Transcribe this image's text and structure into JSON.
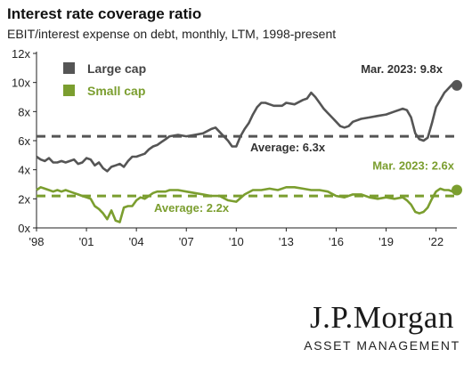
{
  "title": "Interest rate coverage ratio",
  "subtitle": "EBIT/interest expense on debt, monthly, LTM, 1998-present",
  "brand": {
    "name": "J.P.Morgan",
    "tagline": "ASSET MANAGEMENT"
  },
  "colors": {
    "large_cap": "#555555",
    "small_cap": "#7b9e2f",
    "axis": "#222222",
    "text": "#222222"
  },
  "chart_data": {
    "type": "line",
    "title": "Interest rate coverage ratio",
    "xlabel": "",
    "ylabel": "",
    "xlim": [
      1998,
      2023.25
    ],
    "ylim": [
      0,
      12
    ],
    "grid": false,
    "legend": "top-left",
    "x_ticks": [
      1998,
      2001,
      2004,
      2007,
      2010,
      2013,
      2016,
      2019,
      2022
    ],
    "x_tick_labels": [
      "'98",
      "'01",
      "'04",
      "'07",
      "'10",
      "'13",
      "'16",
      "'19",
      "'22"
    ],
    "y_ticks": [
      0,
      2,
      4,
      6,
      8,
      10,
      12
    ],
    "y_tick_labels": [
      "0x",
      "2x",
      "4x",
      "6x",
      "8x",
      "10x",
      "12x"
    ],
    "series": [
      {
        "name": "Large cap",
        "color": "#555555",
        "average": 6.3,
        "average_label": "Average: 6.3x",
        "end_label": "Mar. 2023: 9.8x",
        "x": [
          1998.0,
          1998.25,
          1998.5,
          1998.75,
          1999.0,
          1999.25,
          1999.5,
          1999.75,
          2000.0,
          2000.25,
          2000.5,
          2000.75,
          2001.0,
          2001.25,
          2001.5,
          2001.75,
          2002.0,
          2002.25,
          2002.5,
          2002.75,
          2003.0,
          2003.25,
          2003.5,
          2003.75,
          2004.0,
          2004.25,
          2004.5,
          2004.75,
          2005.0,
          2005.25,
          2005.5,
          2005.75,
          2006.0,
          2006.5,
          2007.0,
          2007.5,
          2008.0,
          2008.5,
          2008.75,
          2009.0,
          2009.25,
          2009.5,
          2009.75,
          2010.0,
          2010.25,
          2010.5,
          2010.75,
          2011.0,
          2011.25,
          2011.5,
          2011.75,
          2012.0,
          2012.25,
          2012.5,
          2012.75,
          2013.0,
          2013.5,
          2014.0,
          2014.25,
          2014.5,
          2014.75,
          2015.0,
          2015.25,
          2015.5,
          2015.75,
          2016.0,
          2016.25,
          2016.5,
          2016.75,
          2017.0,
          2017.5,
          2018.0,
          2018.5,
          2019.0,
          2019.5,
          2020.0,
          2020.25,
          2020.5,
          2020.75,
          2021.0,
          2021.25,
          2021.5,
          2021.75,
          2022.0,
          2022.25,
          2022.5,
          2022.75,
          2023.0,
          2023.25
        ],
        "y": [
          4.9,
          4.7,
          4.6,
          4.8,
          4.5,
          4.5,
          4.6,
          4.5,
          4.6,
          4.7,
          4.4,
          4.5,
          4.8,
          4.7,
          4.3,
          4.5,
          4.1,
          3.9,
          4.2,
          4.3,
          4.4,
          4.2,
          4.6,
          4.9,
          4.9,
          5.0,
          5.1,
          5.4,
          5.6,
          5.7,
          5.9,
          6.1,
          6.3,
          6.4,
          6.3,
          6.4,
          6.5,
          6.8,
          6.9,
          6.6,
          6.3,
          6.0,
          5.6,
          5.6,
          6.3,
          6.8,
          7.2,
          7.8,
          8.3,
          8.6,
          8.6,
          8.5,
          8.4,
          8.4,
          8.4,
          8.6,
          8.5,
          8.8,
          8.9,
          9.3,
          9.0,
          8.6,
          8.2,
          7.9,
          7.6,
          7.3,
          7.0,
          6.9,
          7.0,
          7.3,
          7.5,
          7.6,
          7.7,
          7.8,
          8.0,
          8.2,
          8.1,
          7.6,
          6.5,
          6.1,
          6.0,
          6.2,
          7.2,
          8.3,
          8.8,
          9.3,
          9.6,
          9.9,
          9.8
        ]
      },
      {
        "name": "Small cap",
        "color": "#7b9e2f",
        "average": 2.2,
        "average_label": "Average: 2.2x",
        "end_label": "Mar. 2023: 2.6x",
        "x": [
          1998.0,
          1998.25,
          1998.5,
          1998.75,
          1999.0,
          1999.25,
          1999.5,
          1999.75,
          2000.0,
          2000.25,
          2000.5,
          2000.75,
          2001.0,
          2001.25,
          2001.5,
          2001.75,
          2002.0,
          2002.25,
          2002.5,
          2002.75,
          2003.0,
          2003.25,
          2003.5,
          2003.75,
          2004.0,
          2004.25,
          2004.5,
          2004.75,
          2005.0,
          2005.25,
          2005.5,
          2005.75,
          2006.0,
          2006.5,
          2007.0,
          2007.5,
          2008.0,
          2008.5,
          2009.0,
          2009.5,
          2010.0,
          2010.5,
          2011.0,
          2011.5,
          2012.0,
          2012.5,
          2013.0,
          2013.5,
          2014.0,
          2014.5,
          2015.0,
          2015.5,
          2016.0,
          2016.5,
          2017.0,
          2017.5,
          2018.0,
          2018.5,
          2019.0,
          2019.5,
          2020.0,
          2020.25,
          2020.5,
          2020.75,
          2021.0,
          2021.25,
          2021.5,
          2021.75,
          2022.0,
          2022.25,
          2022.5,
          2022.75,
          2023.0,
          2023.25
        ],
        "y": [
          2.6,
          2.8,
          2.7,
          2.6,
          2.5,
          2.6,
          2.5,
          2.6,
          2.5,
          2.4,
          2.3,
          2.2,
          2.1,
          2.0,
          1.5,
          1.3,
          1.0,
          0.6,
          1.2,
          0.5,
          0.4,
          1.4,
          1.5,
          1.5,
          1.9,
          2.1,
          2.0,
          2.2,
          2.4,
          2.5,
          2.5,
          2.5,
          2.6,
          2.6,
          2.5,
          2.4,
          2.3,
          2.2,
          2.2,
          1.9,
          1.8,
          2.3,
          2.6,
          2.6,
          2.7,
          2.6,
          2.8,
          2.8,
          2.7,
          2.6,
          2.6,
          2.5,
          2.2,
          2.1,
          2.3,
          2.3,
          2.1,
          2.0,
          2.1,
          2.0,
          2.1,
          1.9,
          1.6,
          1.1,
          1.0,
          1.1,
          1.4,
          2.0,
          2.5,
          2.7,
          2.6,
          2.6,
          2.5,
          2.6
        ]
      }
    ]
  }
}
